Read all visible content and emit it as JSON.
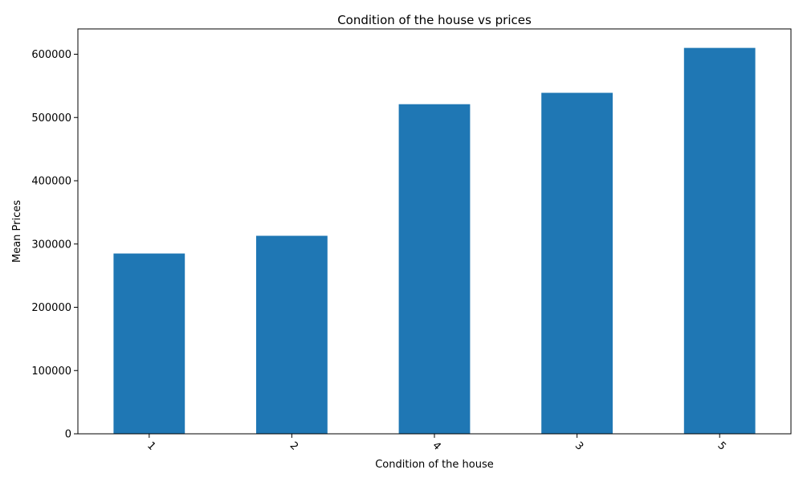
{
  "chart_data": {
    "type": "bar",
    "title": "Condition of the house vs prices",
    "xlabel": "Condition of the house",
    "ylabel": "Mean Prices",
    "categories": [
      "1",
      "2",
      "4",
      "3",
      "5"
    ],
    "values": [
      285000,
      313000,
      521000,
      539000,
      610000
    ],
    "ylim": [
      0,
      640000
    ],
    "yticks": [
      0,
      100000,
      200000,
      300000,
      400000,
      500000,
      600000
    ],
    "ytick_labels": [
      "0",
      "100000",
      "200000",
      "300000",
      "400000",
      "500000",
      "600000"
    ],
    "x_tick_rotation_deg": 45,
    "grid": false,
    "legend": "none",
    "bar_color": "#1f77b4"
  }
}
